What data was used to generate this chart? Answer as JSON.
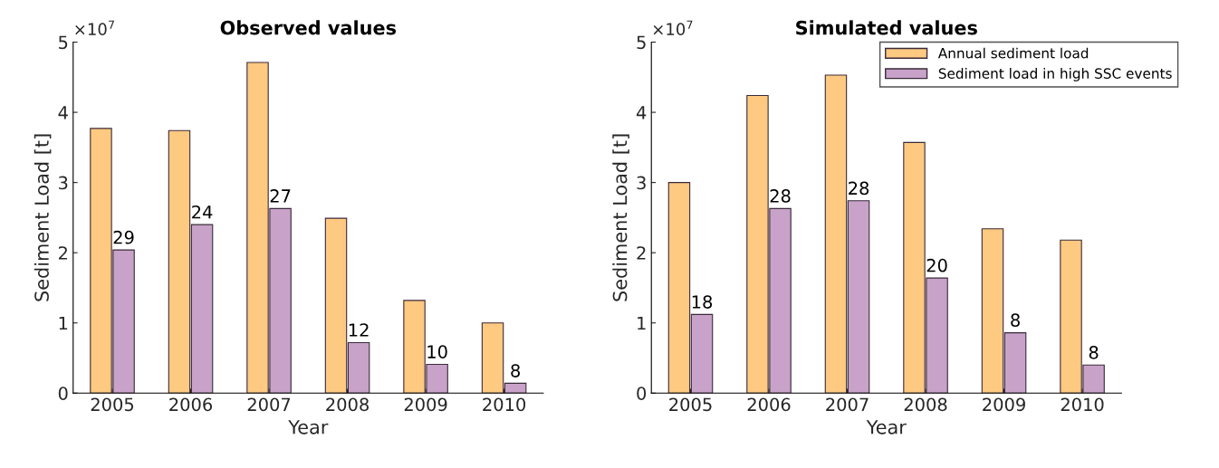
{
  "chart_data": [
    {
      "type": "bar",
      "title": "Observed values",
      "xlabel": "Year",
      "ylabel": "Sediment Load [t]",
      "annotations": [
        "×10$^{7}$",
        {
          "text": "29",
          "x": "2005",
          "y": 2.04
        },
        {
          "text": "24",
          "x": "2006",
          "y": 2.4
        },
        {
          "text": "27",
          "x": "2007",
          "y": 2.63
        },
        {
          "text": "12",
          "x": "2008",
          "y": 0.72
        },
        {
          "text": "10",
          "x": "2009",
          "y": 0.41
        },
        {
          "text": "8",
          "x": "2010",
          "y": 0.14
        }
      ],
      "categories": [
        "2005",
        "2006",
        "2007",
        "2008",
        "2009",
        "2010"
      ],
      "series": [
        {
          "color": "#fec980",
          "values": [
            3.77,
            3.74,
            4.71,
            2.49,
            1.32,
            1.0
          ]
        },
        {
          "color": "#c8a2c8",
          "values": [
            2.04,
            2.4,
            2.63,
            0.72,
            0.41,
            0.14
          ]
        }
      ],
      "ylim": [
        0,
        5
      ],
      "yticks": [
        0,
        1,
        2,
        3,
        4,
        5
      ],
      "grid": false,
      "legend": false
    },
    {
      "type": "bar",
      "title": "Simulated values",
      "xlabel": "Year",
      "ylabel": "Sediment Load [t]",
      "annotations": [
        "×10$^{7}$",
        {
          "text": "18",
          "x": "2005",
          "y": 1.12
        },
        {
          "text": "28",
          "x": "2006",
          "y": 2.63
        },
        {
          "text": "28",
          "x": "2007",
          "y": 2.74
        },
        {
          "text": "20",
          "x": "2008",
          "y": 1.64
        },
        {
          "text": "8",
          "x": "2009",
          "y": 0.86
        },
        {
          "text": "8",
          "x": "2010",
          "y": 0.4
        }
      ],
      "categories": [
        "2005",
        "2006",
        "2007",
        "2008",
        "2009",
        "2010"
      ],
      "series": [
        {
          "name": "Annual sediment load",
          "color": "#fec980",
          "values": [
            3.0,
            4.24,
            4.53,
            3.57,
            2.34,
            2.18
          ]
        },
        {
          "name": "Sediment load in high SSC events",
          "color": "#c8a2c8",
          "values": [
            1.12,
            2.63,
            2.74,
            1.64,
            0.86,
            0.4
          ]
        }
      ],
      "ylim": [
        0,
        5
      ],
      "yticks": [
        0,
        1,
        2,
        3,
        4,
        5
      ],
      "grid": false,
      "legend": "top right"
    }
  ]
}
